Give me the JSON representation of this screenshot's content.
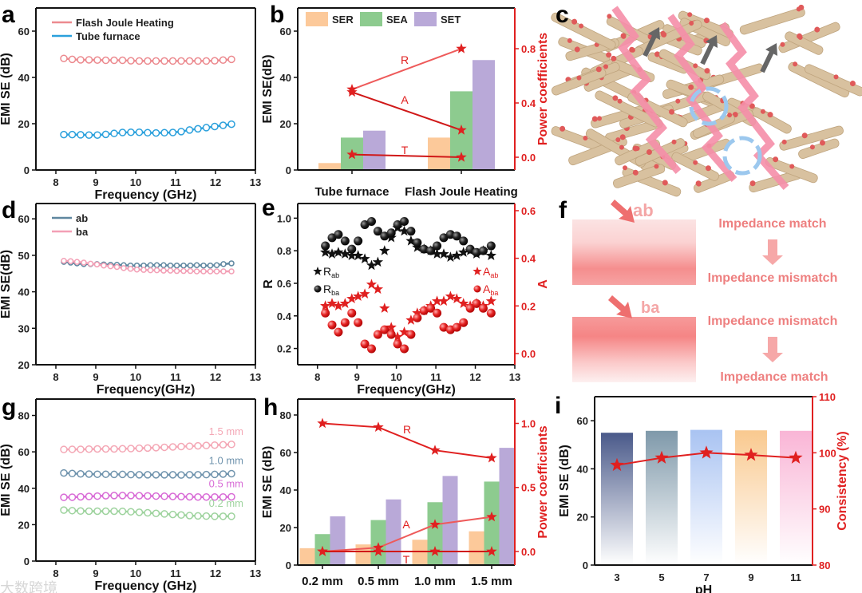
{
  "watermark": "大数跨境",
  "colors": {
    "red": "#e02020",
    "ser": "#fcc99a",
    "sea": "#8dcb8f",
    "set": "#b9a9d8",
    "fjh": "#ec8a8f",
    "tube": "#2aa0dc",
    "ab": "#5f87a0",
    "ba": "#f3a0b6"
  },
  "chart_data": [
    {
      "panel": "a",
      "type": "line",
      "xlabel": "Frequency (GHz)",
      "ylabel": "EMI SE (dB)",
      "xlim": [
        7.5,
        13
      ],
      "ylim": [
        0,
        70
      ],
      "xticks": [
        8,
        9,
        10,
        11,
        12,
        13
      ],
      "yticks": [
        0,
        20,
        40,
        60
      ],
      "legend": "top-left",
      "x": [
        8.2,
        8.41,
        8.62,
        8.83,
        9.04,
        9.25,
        9.46,
        9.67,
        9.88,
        10.09,
        10.3,
        10.51,
        10.72,
        10.93,
        11.14,
        11.35,
        11.56,
        11.77,
        11.98,
        12.19,
        12.4
      ],
      "series": [
        {
          "name": "Flash Joule Heating",
          "color": "#ec8a8f",
          "values": [
            48.2,
            47.8,
            47.6,
            47.6,
            47.5,
            47.4,
            47.4,
            47.4,
            47.2,
            47.1,
            47.1,
            47.1,
            47.1,
            47.1,
            47.1,
            47.1,
            47.1,
            47.1,
            47.2,
            47.5,
            47.8
          ]
        },
        {
          "name": "Tube furnace",
          "color": "#2aa0dc",
          "values": [
            15.3,
            15.3,
            15.2,
            15.1,
            15.1,
            15.4,
            15.8,
            16.2,
            16.3,
            16.3,
            16.1,
            16.0,
            16.1,
            16.2,
            16.6,
            17.3,
            17.8,
            18.3,
            18.8,
            19.3,
            19.8
          ]
        }
      ]
    },
    {
      "panel": "b",
      "type": "bar",
      "categories": [
        "Tube furnace",
        "Flash Joule Heating"
      ],
      "ylabel": "EMI SE(dB)",
      "y2label": "Power coefficients",
      "ylim": [
        0,
        70
      ],
      "y2lim": [
        -0.094,
        1.1
      ],
      "yticks": [
        0,
        20,
        40,
        60
      ],
      "y2ticks": [
        0.0,
        0.4,
        0.8
      ],
      "legend": "top",
      "series": [
        {
          "name": "SER",
          "values": [
            3,
            14
          ]
        },
        {
          "name": "SEA",
          "values": [
            14,
            34
          ]
        },
        {
          "name": "SET",
          "values": [
            17,
            47.5
          ]
        }
      ],
      "lines": [
        {
          "name": "R",
          "values": [
            0.5,
            0.8
          ]
        },
        {
          "name": "A",
          "values": [
            0.48,
            0.2
          ]
        },
        {
          "name": "T",
          "values": [
            0.02,
            0.0
          ]
        }
      ]
    },
    {
      "panel": "d",
      "type": "line",
      "xlabel": "Frequency(GHz)",
      "ylabel": "EMI SE(dB)",
      "xlim": [
        7.5,
        13
      ],
      "ylim": [
        20,
        64.2
      ],
      "xticks": [
        8,
        9,
        10,
        11,
        12,
        13
      ],
      "yticks": [
        20,
        30,
        40,
        50,
        60
      ],
      "legend": "top-left",
      "x": [
        8.2,
        8.37,
        8.53,
        8.7,
        8.87,
        9.03,
        9.2,
        9.37,
        9.53,
        9.7,
        9.87,
        10.03,
        10.2,
        10.37,
        10.53,
        10.7,
        10.87,
        11.03,
        11.2,
        11.37,
        11.53,
        11.7,
        11.87,
        12.03,
        12.2,
        12.4
      ],
      "series": [
        {
          "name": "ab",
          "color": "#5f87a0",
          "values": [
            48.2,
            48.0,
            47.8,
            47.6,
            47.6,
            47.6,
            47.5,
            47.4,
            47.4,
            47.3,
            47.2,
            47.2,
            47.2,
            47.3,
            47.3,
            47.3,
            47.2,
            47.2,
            47.2,
            47.2,
            47.3,
            47.2,
            47.2,
            47.3,
            47.6,
            47.8
          ]
        },
        {
          "name": "ba",
          "color": "#f3a0b6",
          "values": [
            48.5,
            48.4,
            48.2,
            48.0,
            47.7,
            47.5,
            47.2,
            47.0,
            46.8,
            46.5,
            46.3,
            46.1,
            46.0,
            45.9,
            45.9,
            45.8,
            45.8,
            45.7,
            45.7,
            45.7,
            45.6,
            45.6,
            45.6,
            45.6,
            45.6,
            45.6
          ]
        }
      ]
    },
    {
      "panel": "e",
      "type": "scatter",
      "xlabel": "Frequency(GHz)",
      "ylabel": "R",
      "y2label": "A",
      "xlim": [
        7.5,
        13
      ],
      "ylim": [
        0.1,
        1.09
      ],
      "y2lim": [
        -0.047,
        0.63
      ],
      "xticks": [
        8,
        9,
        10,
        11,
        12,
        13
      ],
      "yticks": [
        0.2,
        0.4,
        0.6,
        0.8,
        1.0
      ],
      "y2ticks": [
        0.0,
        0.2,
        0.4,
        0.6
      ],
      "x": [
        8.2,
        8.37,
        8.53,
        8.7,
        8.87,
        9.03,
        9.2,
        9.37,
        9.53,
        9.7,
        9.87,
        10.03,
        10.2,
        10.37,
        10.53,
        10.7,
        10.87,
        11.03,
        11.2,
        11.37,
        11.53,
        11.7,
        11.87,
        12.03,
        12.2,
        12.4
      ],
      "series": [
        {
          "name": "R",
          "sub": "ab",
          "axis": "left",
          "marker": "star",
          "color": "#111111",
          "values": [
            0.79,
            0.78,
            0.79,
            0.78,
            0.77,
            0.77,
            0.75,
            0.71,
            0.73,
            0.8,
            0.88,
            0.94,
            0.92,
            0.86,
            0.82,
            0.81,
            0.8,
            0.78,
            0.78,
            0.76,
            0.77,
            0.79,
            0.8,
            0.78,
            0.8,
            0.77
          ]
        },
        {
          "name": "R",
          "sub": "ba",
          "axis": "left",
          "marker": "ball",
          "color": "#111111",
          "values": [
            0.83,
            0.88,
            0.9,
            0.86,
            0.81,
            0.86,
            0.96,
            0.98,
            0.92,
            0.89,
            0.91,
            0.96,
            0.98,
            0.92,
            0.85,
            0.81,
            0.8,
            0.83,
            0.88,
            0.9,
            0.89,
            0.86,
            0.81,
            0.79,
            0.8,
            0.83
          ]
        },
        {
          "name": "A",
          "sub": "ab",
          "axis": "right",
          "marker": "star",
          "color": "#e02020",
          "values": [
            0.2,
            0.21,
            0.2,
            0.21,
            0.23,
            0.24,
            0.25,
            0.29,
            0.27,
            0.19,
            0.11,
            0.07,
            0.09,
            0.14,
            0.17,
            0.18,
            0.2,
            0.22,
            0.22,
            0.24,
            0.23,
            0.21,
            0.2,
            0.21,
            0.2,
            0.22
          ]
        },
        {
          "name": "A",
          "sub": "ba",
          "axis": "right",
          "marker": "ball",
          "color": "#e02020",
          "values": [
            0.17,
            0.12,
            0.09,
            0.13,
            0.17,
            0.13,
            0.04,
            0.02,
            0.08,
            0.1,
            0.08,
            0.04,
            0.02,
            0.08,
            0.15,
            0.18,
            0.19,
            0.17,
            0.11,
            0.1,
            0.11,
            0.13,
            0.19,
            0.21,
            0.19,
            0.17
          ]
        }
      ]
    },
    {
      "panel": "g",
      "type": "line",
      "xlabel": "Frequency (GHz)",
      "ylabel": "EMI SE (dB)",
      "xlim": [
        7.5,
        13
      ],
      "ylim": [
        0,
        89
      ],
      "xticks": [
        8,
        9,
        10,
        11,
        12,
        13
      ],
      "yticks": [
        0,
        20,
        40,
        60,
        80
      ],
      "x": [
        8.2,
        8.41,
        8.62,
        8.83,
        9.04,
        9.25,
        9.46,
        9.67,
        9.88,
        10.09,
        10.3,
        10.51,
        10.72,
        10.93,
        11.14,
        11.35,
        11.56,
        11.77,
        11.98,
        12.19,
        12.4
      ],
      "series": [
        {
          "name": "1.5 mm",
          "color": "#f4a7b5",
          "values": [
            61.3,
            61.4,
            61.4,
            61.5,
            61.6,
            61.6,
            61.6,
            61.7,
            61.8,
            62.0,
            62.1,
            62.3,
            62.5,
            62.7,
            62.9,
            63.1,
            63.3,
            63.5,
            63.7,
            63.9,
            64.1
          ]
        },
        {
          "name": "1.0 mm",
          "color": "#6f93ad",
          "values": [
            48.4,
            48.1,
            47.9,
            47.8,
            47.7,
            47.7,
            47.6,
            47.6,
            47.5,
            47.4,
            47.4,
            47.4,
            47.4,
            47.4,
            47.3,
            47.4,
            47.4,
            47.5,
            47.6,
            47.8,
            48.0
          ]
        },
        {
          "name": "0.5 mm",
          "color": "#d86bd6",
          "values": [
            35.0,
            35.1,
            35.3,
            35.5,
            35.7,
            35.9,
            36.0,
            36.0,
            36.0,
            35.9,
            35.8,
            35.7,
            35.6,
            35.5,
            35.4,
            35.3,
            35.2,
            35.2,
            35.2,
            35.2,
            35.3
          ]
        },
        {
          "name": "0.2 mm",
          "color": "#9ed39e",
          "values": [
            28.0,
            27.7,
            27.5,
            27.4,
            27.4,
            27.4,
            27.4,
            27.3,
            27.1,
            26.8,
            26.5,
            26.2,
            25.9,
            25.6,
            25.3,
            25.0,
            24.8,
            24.7,
            24.6,
            24.6,
            24.6
          ]
        }
      ]
    },
    {
      "panel": "h",
      "type": "bar",
      "categories": [
        "0.2 mm",
        "0.5 mm",
        "1.0 mm",
        "1.5 mm"
      ],
      "ylabel": "EMI SE (dB)",
      "y2label": "Power coefficients",
      "ylim": [
        0,
        88.5
      ],
      "y2lim": [
        -0.106,
        1.19
      ],
      "yticks": [
        0,
        20,
        40,
        60,
        80
      ],
      "y2ticks": [
        0.0,
        0.5,
        1.0
      ],
      "series": [
        {
          "name": "SER",
          "values": [
            9,
            11,
            13.5,
            18
          ]
        },
        {
          "name": "SEA",
          "values": [
            16.5,
            24,
            33.5,
            44.5
          ]
        },
        {
          "name": "SET",
          "values": [
            26,
            35,
            47.5,
            62.5
          ]
        }
      ],
      "lines": [
        {
          "name": "R",
          "values": [
            1.0,
            0.97,
            0.79,
            0.73
          ]
        },
        {
          "name": "A",
          "values": [
            0.0,
            0.03,
            0.21,
            0.27
          ]
        },
        {
          "name": "T",
          "values": [
            0.0,
            0.0,
            0.0,
            0.0
          ]
        }
      ]
    },
    {
      "panel": "i",
      "type": "bar",
      "categories": [
        "3",
        "5",
        "7",
        "9",
        "11"
      ],
      "xlabel": "pH",
      "ylabel": "EMI SE (dB)",
      "y2label": "Consistency (%)",
      "ylim": [
        0,
        70
      ],
      "y2lim": [
        80,
        110
      ],
      "yticks": [
        0,
        20,
        40,
        60
      ],
      "y2ticks": [
        80,
        90,
        100,
        110
      ],
      "bar_colors": [
        "#4a5a8a",
        "#7f99aa",
        "#a9c3f2",
        "#f9c98f",
        "#f9b5d6"
      ],
      "series": [
        {
          "name": "EMI SE",
          "values": [
            55,
            55.8,
            56.2,
            56,
            55.8
          ]
        }
      ],
      "lines": [
        {
          "name": "Consistency",
          "values": [
            97.8,
            99.1,
            100,
            99.6,
            99.1
          ]
        }
      ]
    }
  ],
  "panels": {
    "a": "a",
    "b": "b",
    "c": "c",
    "d": "d",
    "e": "e",
    "f": "f",
    "g": "g",
    "h": "h",
    "i": "i"
  },
  "figure_f": {
    "top_label": "ab",
    "bottom_label": "ba",
    "top_from": "Impedance match",
    "top_to": "Impedance mismatch",
    "bottom_from": "Impedance mismatch",
    "bottom_to": "Impedance match"
  }
}
